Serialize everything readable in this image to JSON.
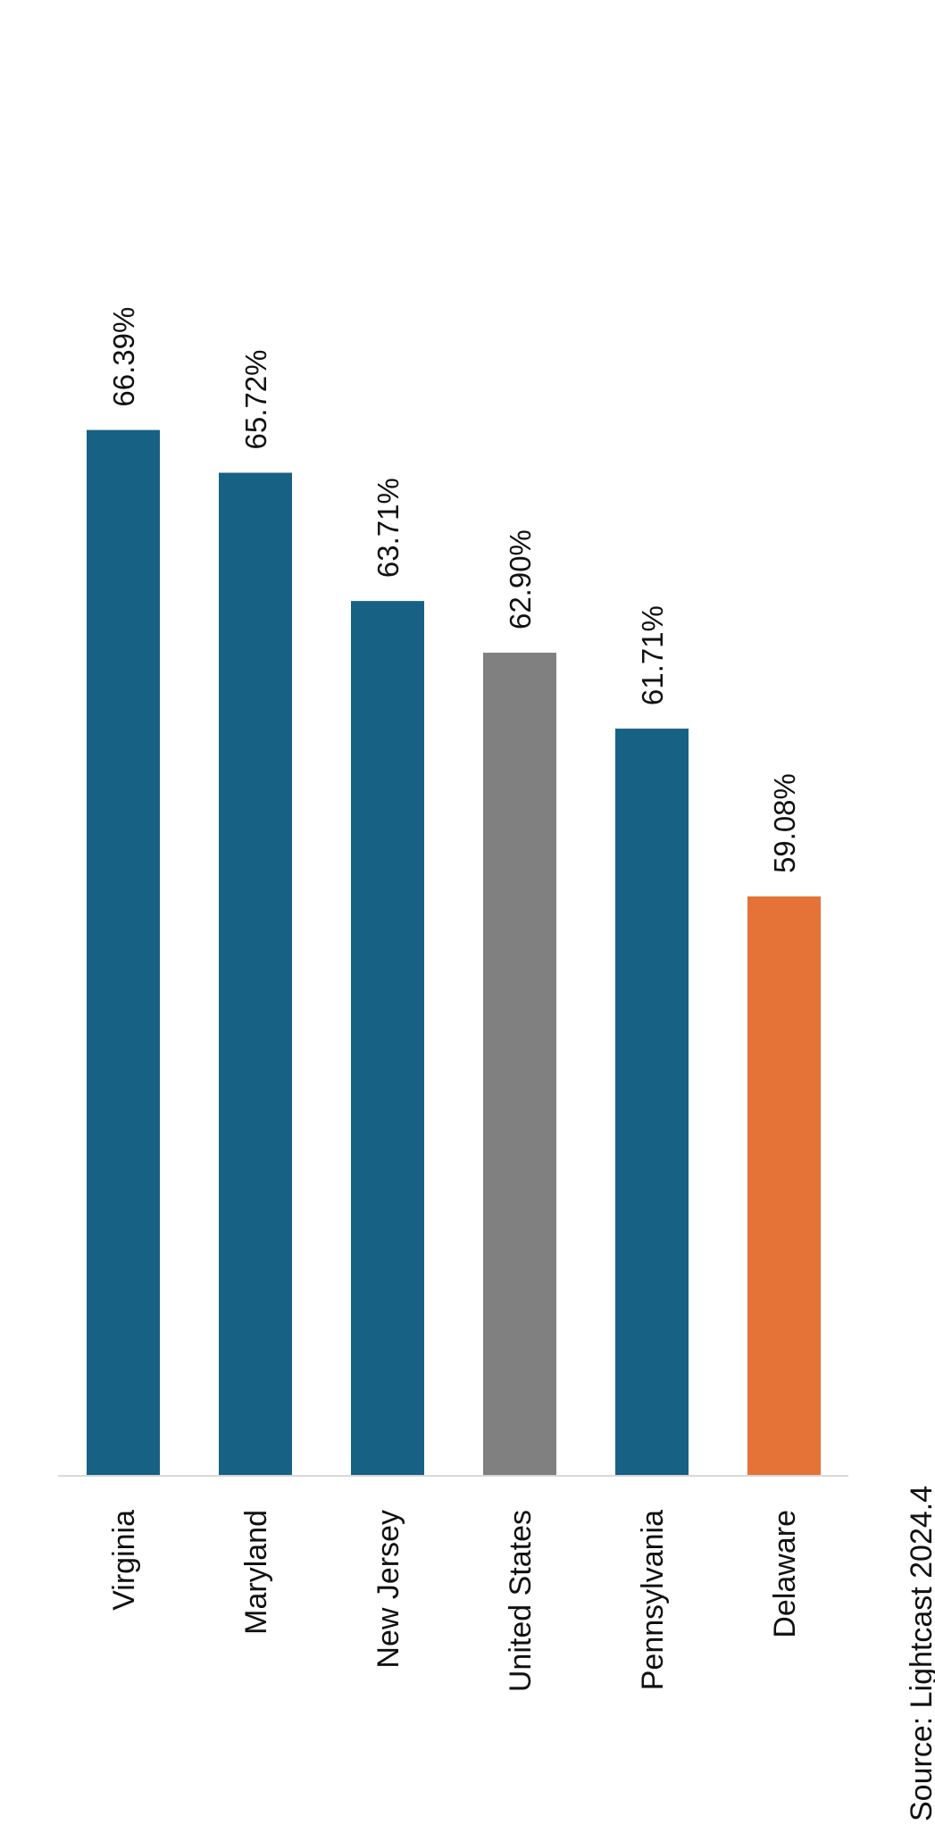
{
  "chart_data": {
    "type": "bar",
    "categories": [
      "Virginia",
      "Maryland",
      "New Jersey",
      "United States",
      "Pennsylvania",
      "Delaware"
    ],
    "values": [
      66.39,
      65.72,
      63.71,
      62.9,
      61.71,
      59.08
    ],
    "value_labels": [
      "66.39%",
      "65.72%",
      "63.71%",
      "62.90%",
      "61.71%",
      "59.08%"
    ],
    "bar_colors": [
      "#176185",
      "#176185",
      "#176185",
      "#808080",
      "#176185",
      "#E57236"
    ],
    "ylim": [
      50.0,
      67.0
    ],
    "grid": false,
    "legend": "none",
    "orientation": "rotated-90-clockwise",
    "source": "Source: Lightcast 2024.4"
  },
  "colors": {
    "primary": "#176185",
    "us_benchmark": "#808080",
    "highlight": "#E57236",
    "axis_line": "#d9d9d9"
  }
}
